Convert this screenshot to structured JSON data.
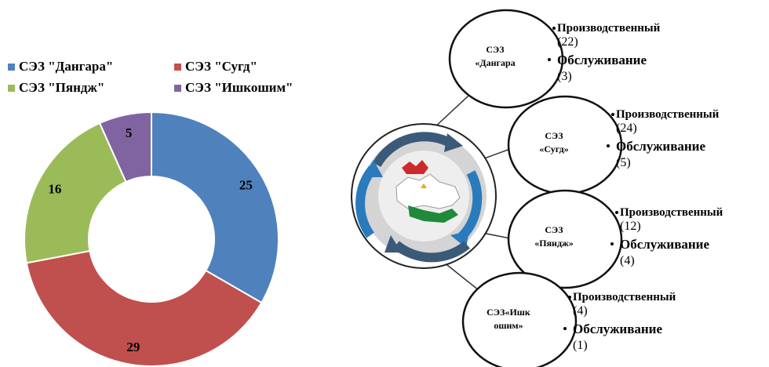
{
  "chart_data": {
    "type": "pie",
    "variant": "donut",
    "legend_position": "top",
    "categories": [
      "СЭЗ \"Дангара\"",
      "СЭЗ \"Сугд\"",
      "СЭЗ \"Пяндж\"",
      "СЭЗ \"Ишкошим\""
    ],
    "values": [
      25,
      29,
      16,
      5
    ],
    "colors": [
      "#4f81bd",
      "#c0504d",
      "#9bbb59",
      "#8064a2"
    ]
  },
  "diagram": {
    "center_icon": "tajikistan-map-cycle-icon",
    "nodes": [
      {
        "title_lines": [
          "СЭЗ",
          "«Дангара"
        ],
        "items": [
          {
            "label": "Производственный",
            "count": "(22)"
          },
          {
            "label": "Обслуживание",
            "count": "(3)"
          }
        ]
      },
      {
        "title_lines": [
          "СЭЗ",
          "«Сугд»"
        ],
        "items": [
          {
            "label": "Производственный",
            "count": "(24)"
          },
          {
            "label": "Обслуживание",
            "count": "(5)"
          }
        ]
      },
      {
        "title_lines": [
          "СЭЗ",
          "«Пяндж»"
        ],
        "items": [
          {
            "label": "Производственный",
            "count": "(12)"
          },
          {
            "label": "Обслуживание",
            "count": "(4)"
          }
        ]
      },
      {
        "title_lines": [
          "СЭЗ«Ишк",
          "ошим»"
        ],
        "items": [
          {
            "label": "Производственный",
            "count": "(4)"
          },
          {
            "label": "Обслуживание",
            "count": "(1)"
          }
        ]
      }
    ]
  }
}
